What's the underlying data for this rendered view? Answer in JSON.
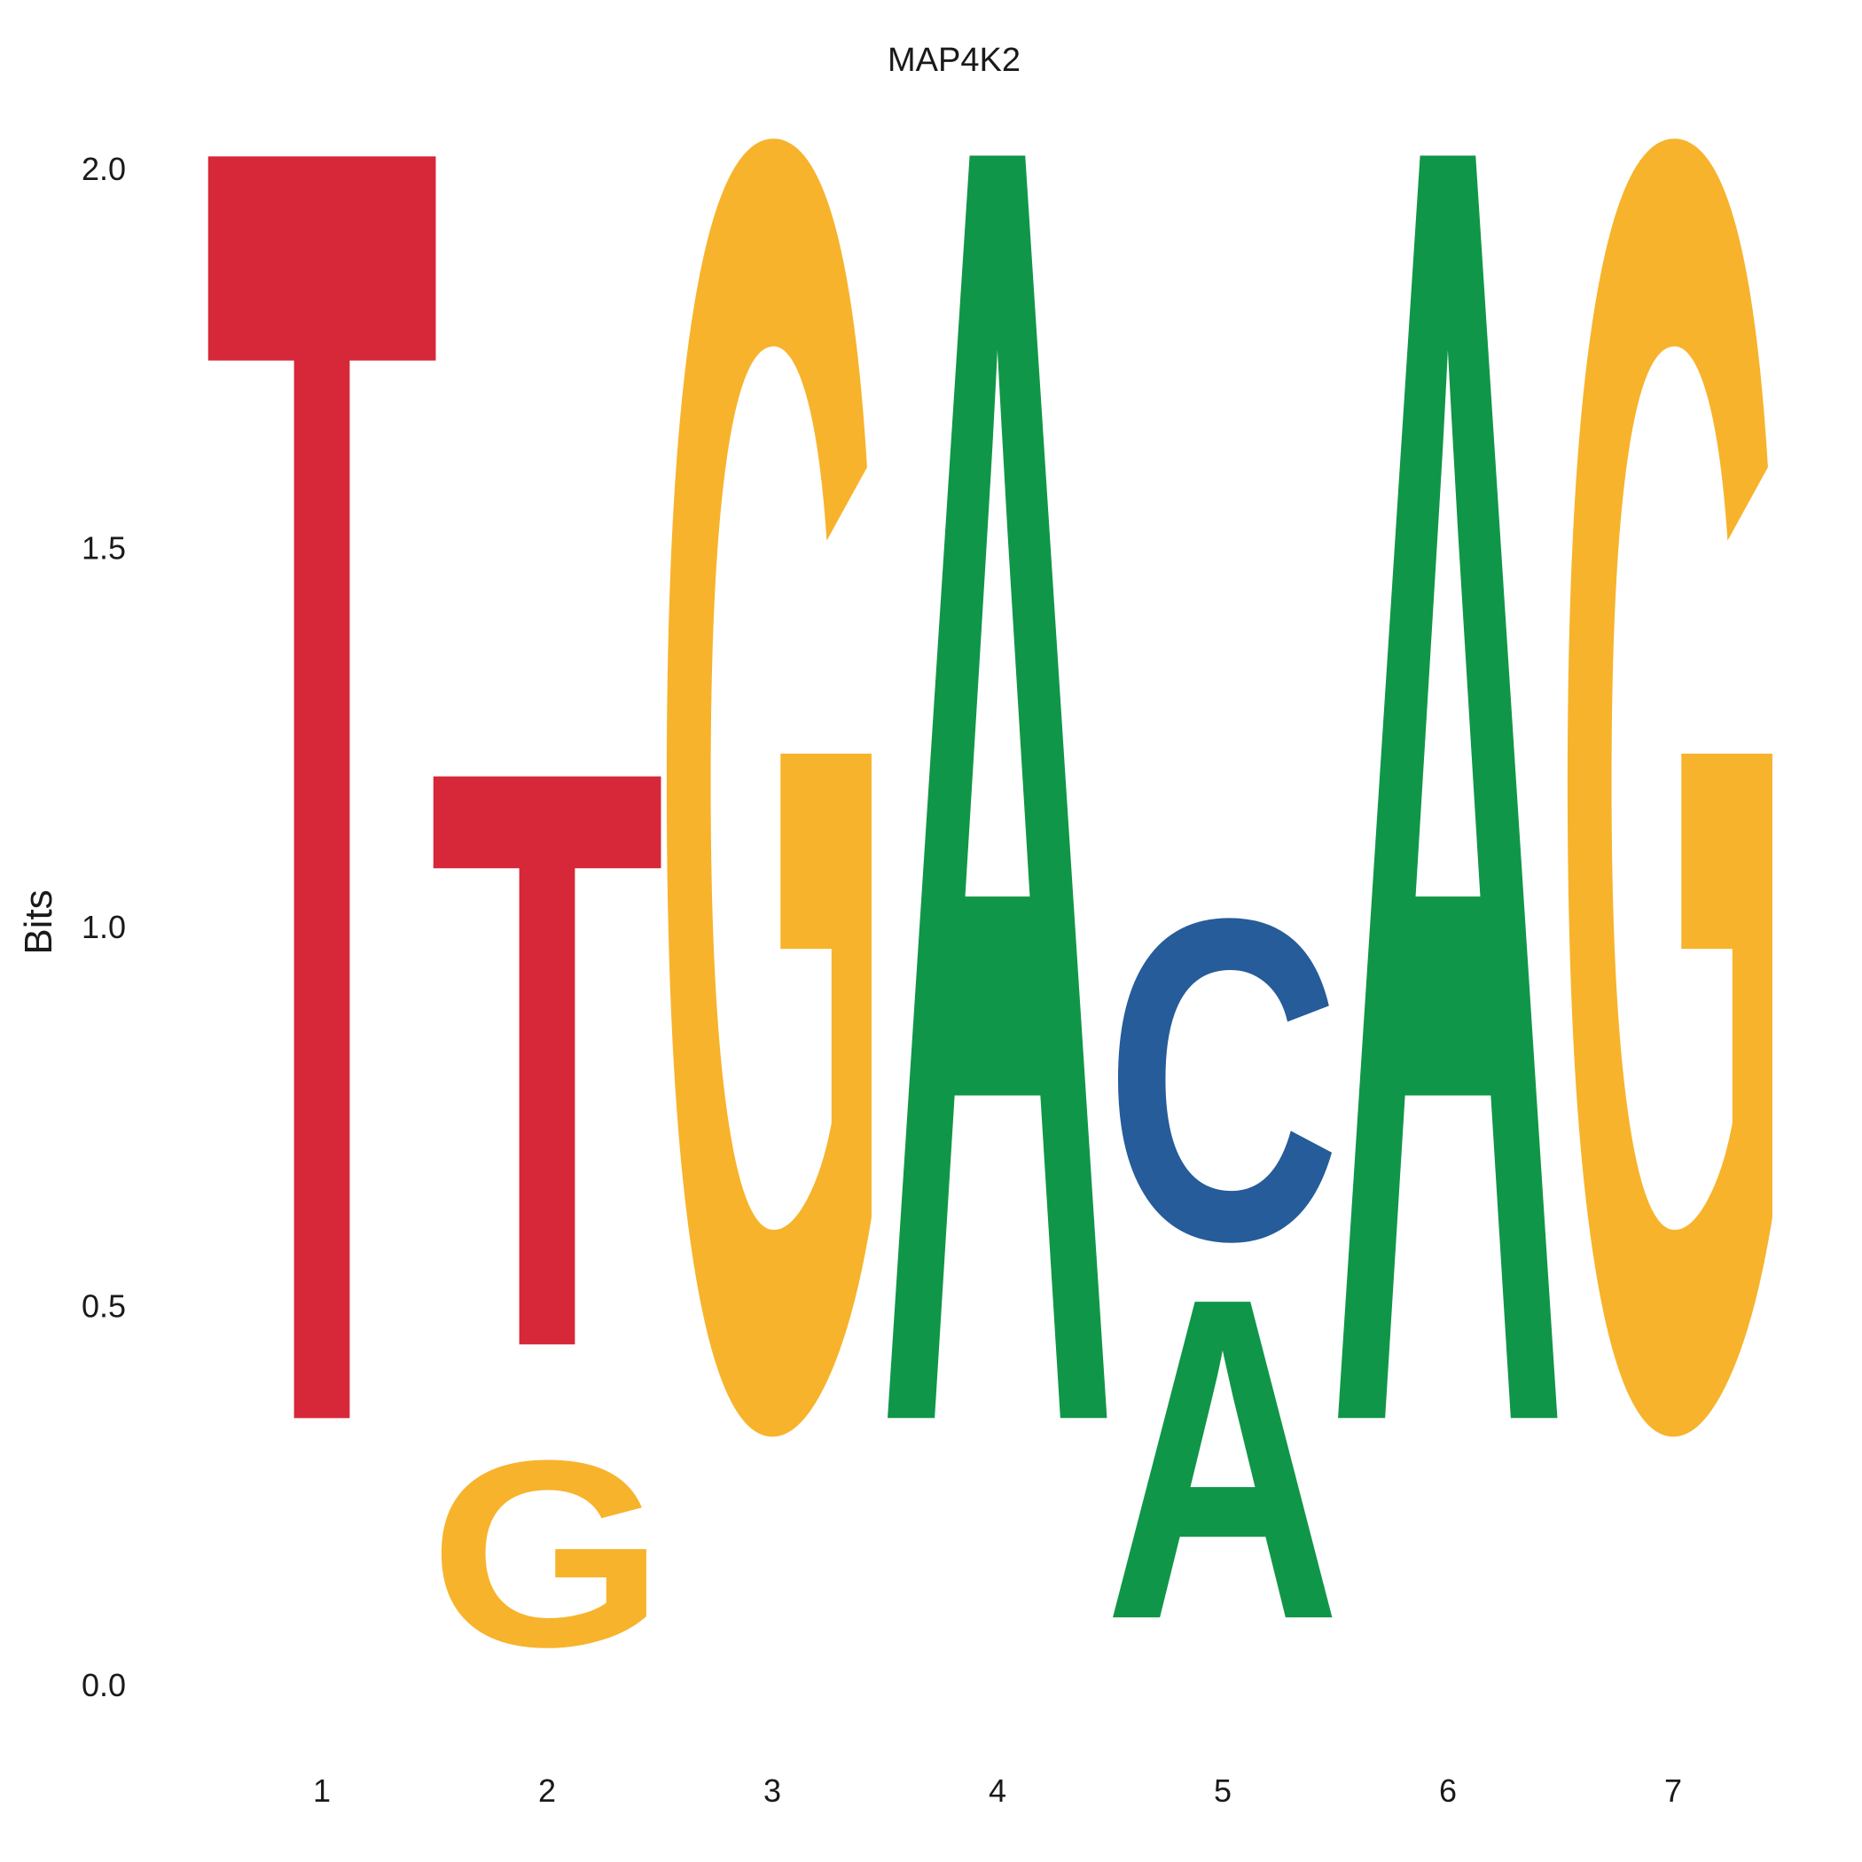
{
  "chart_data": {
    "type": "sequence-logo",
    "title": "MAP4K2",
    "xlabel": "",
    "ylabel": "Bits",
    "ylim": [
      0,
      2.0
    ],
    "y_ticks": [
      "0.0",
      "0.5",
      "1.0",
      "1.5",
      "2.0"
    ],
    "x_ticks": [
      "1",
      "2",
      "3",
      "4",
      "5",
      "6",
      "7"
    ],
    "grid": false,
    "colors": {
      "A": "#109648",
      "C": "#255C99",
      "G": "#F7B32B",
      "T": "#D62839"
    },
    "positions": [
      {
        "position": "1",
        "stack": [
          {
            "letter": "T",
            "bits": 2.0
          }
        ]
      },
      {
        "position": "2",
        "stack": [
          {
            "letter": "G",
            "bits": 0.29
          },
          {
            "letter": "T",
            "bits": 0.9
          }
        ]
      },
      {
        "position": "3",
        "stack": [
          {
            "letter": "G",
            "bits": 2.0
          }
        ]
      },
      {
        "position": "4",
        "stack": [
          {
            "letter": "A",
            "bits": 2.0
          }
        ]
      },
      {
        "position": "5",
        "stack": [
          {
            "letter": "A",
            "bits": 0.5
          },
          {
            "letter": "C",
            "bits": 0.5
          }
        ]
      },
      {
        "position": "6",
        "stack": [
          {
            "letter": "A",
            "bits": 2.0
          }
        ]
      },
      {
        "position": "7",
        "stack": [
          {
            "letter": "G",
            "bits": 2.0
          }
        ]
      }
    ]
  }
}
